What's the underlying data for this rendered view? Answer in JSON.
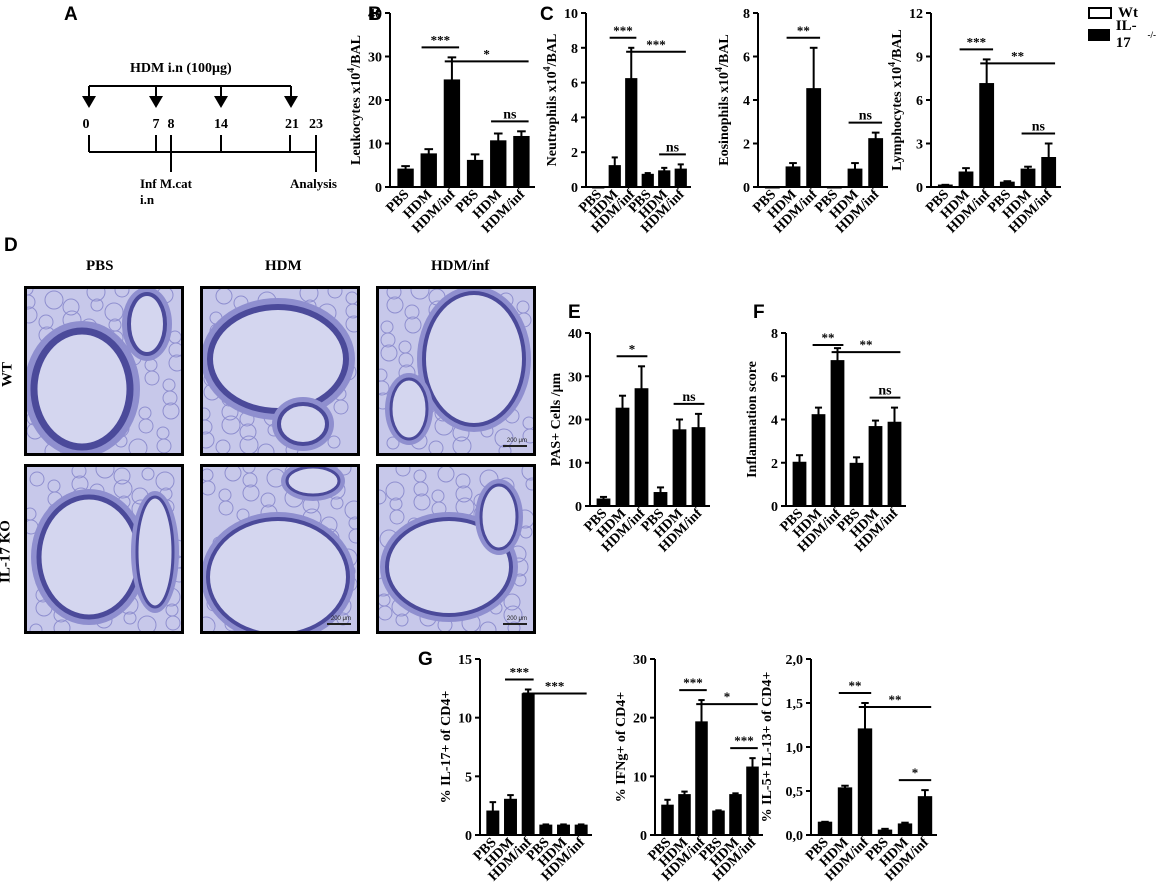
{
  "panel_letters": [
    "A",
    "B",
    "C",
    "D",
    "E",
    "F",
    "G"
  ],
  "legend": [
    {
      "label": "Wt",
      "style": "open"
    },
    {
      "label": "IL-17",
      "sup": "-/-",
      "style": "filled"
    }
  ],
  "timeline": {
    "title": "HDM i.n (100μg)",
    "days": [
      "0",
      "7",
      "8",
      "14",
      "21",
      "23"
    ],
    "infection_label_1": "Inf M.cat",
    "infection_label_2": "i.n",
    "analysis_label": "Analysis"
  },
  "micrographs": {
    "col_labels": [
      "PBS",
      "HDM",
      "HDM/inf"
    ],
    "row_labels": [
      "WT",
      "IL-17 KO"
    ],
    "scale_text": "200 μm",
    "stain_colors": {
      "background": "#c7c8ea",
      "tissue": "#8f8fcf",
      "epithelium": "#4b4a9a",
      "lumen": "#d4d6ef"
    }
  },
  "colors": {
    "open_fill": "#ffffff",
    "filled": "#000000",
    "stroke": "#000000"
  },
  "chart_data": [
    {
      "id": "B",
      "type": "bar",
      "ylabel": "Leukocytes x10",
      "ylabel_sup": "4",
      "ylabel_tail": "/BAL",
      "categories": [
        "PBS",
        "HDM",
        "HDM/inf",
        "PBS",
        "HDM",
        "HDM/inf"
      ],
      "fills": [
        "open",
        "open",
        "open",
        "filled",
        "filled",
        "filled"
      ],
      "values": [
        4,
        7.5,
        24.5,
        6,
        10.5,
        11.5
      ],
      "errors": [
        0.8,
        1.2,
        5.3,
        1.5,
        1.8,
        1.3
      ],
      "ylim": [
        0,
        40
      ],
      "yticks": [
        "0",
        "10",
        "20",
        "30",
        "40"
      ],
      "sig": [
        {
          "from": 1,
          "to": 2,
          "label": "***"
        },
        {
          "from": 2,
          "to": 5,
          "label": "*"
        },
        {
          "from": 4,
          "to": 5,
          "label": "ns"
        }
      ]
    },
    {
      "id": "C1",
      "type": "bar",
      "ylabel": "Neutrophils x10",
      "ylabel_sup": "4",
      "ylabel_tail": "/BAL",
      "categories": [
        "PBS",
        "HDM",
        "HDM/inf",
        "PBS",
        "HDM",
        "HDM/inf"
      ],
      "fills": [
        "open",
        "open",
        "open",
        "filled",
        "filled",
        "filled"
      ],
      "values": [
        0,
        1.2,
        6.2,
        0.7,
        0.9,
        1.0
      ],
      "errors": [
        0,
        0.5,
        1.8,
        0.1,
        0.2,
        0.3
      ],
      "ylim": [
        0,
        10
      ],
      "yticks": [
        "0",
        "2",
        "4",
        "6",
        "8",
        "10"
      ],
      "sig": [
        {
          "from": 1,
          "to": 2,
          "label": "***"
        },
        {
          "from": 2,
          "to": 5,
          "label": "***"
        },
        {
          "from": 4,
          "to": 5,
          "label": "ns"
        }
      ]
    },
    {
      "id": "C2",
      "type": "bar",
      "ylabel": "Eosinophils x10",
      "ylabel_sup": "4",
      "ylabel_tail": "/BAL",
      "categories": [
        "PBS",
        "HDM",
        "HDM/inf",
        "PBS",
        "HDM",
        "HDM/inf"
      ],
      "fills": [
        "open",
        "open",
        "open",
        "filled",
        "filled",
        "filled"
      ],
      "values": [
        0,
        0.9,
        4.5,
        0,
        0.8,
        2.2
      ],
      "errors": [
        0,
        0.2,
        1.9,
        0,
        0.3,
        0.3
      ],
      "ylim": [
        0,
        8
      ],
      "yticks": [
        "0",
        "2",
        "4",
        "6",
        "8"
      ],
      "sig": [
        {
          "from": 1,
          "to": 2,
          "label": "**"
        },
        {
          "from": 4,
          "to": 5,
          "label": "ns"
        }
      ]
    },
    {
      "id": "C3",
      "type": "bar",
      "ylabel": "Lymphocytes x10",
      "ylabel_sup": "4",
      "ylabel_tail": "/BAL",
      "categories": [
        "PBS",
        "HDM",
        "HDM/inf",
        "PBS",
        "HDM",
        "HDM/inf"
      ],
      "fills": [
        "open",
        "open",
        "open",
        "filled",
        "filled",
        "filled"
      ],
      "values": [
        0.1,
        1.0,
        7.1,
        0.3,
        1.2,
        2.0
      ],
      "errors": [
        0.05,
        0.3,
        1.7,
        0.1,
        0.2,
        1.0
      ],
      "ylim": [
        0,
        12
      ],
      "yticks": [
        "0",
        "3",
        "6",
        "9",
        "12"
      ],
      "sig": [
        {
          "from": 1,
          "to": 2,
          "label": "***"
        },
        {
          "from": 2,
          "to": 5,
          "label": "**"
        },
        {
          "from": 4,
          "to": 5,
          "label": "ns"
        }
      ]
    },
    {
      "id": "E",
      "type": "bar",
      "ylabel": "PAS+ Cells /μm",
      "categories": [
        "PBS",
        "HDM",
        "HDM/inf",
        "PBS",
        "HDM",
        "HDM/inf"
      ],
      "fills": [
        "open",
        "open",
        "open",
        "filled",
        "filled",
        "filled"
      ],
      "values": [
        1.5,
        22.5,
        27,
        3,
        17.5,
        18
      ],
      "errors": [
        0.6,
        3,
        5.3,
        1.3,
        2.5,
        3.3
      ],
      "ylim": [
        0,
        40
      ],
      "yticks": [
        "0",
        "10",
        "20",
        "30",
        "40"
      ],
      "sig": [
        {
          "from": 1,
          "to": 2,
          "label": "*"
        },
        {
          "from": 4,
          "to": 5,
          "label": "ns"
        }
      ]
    },
    {
      "id": "F",
      "type": "bar",
      "ylabel": "Inflammation score",
      "categories": [
        "PBS",
        "HDM",
        "HDM/inf",
        "PBS",
        "HDM",
        "HDM/inf"
      ],
      "fills": [
        "open",
        "open",
        "open",
        "filled",
        "filled",
        "filled"
      ],
      "values": [
        2,
        4.2,
        6.7,
        1.95,
        3.65,
        3.85
      ],
      "errors": [
        0.35,
        0.35,
        0.6,
        0.3,
        0.3,
        0.7
      ],
      "ylim": [
        0,
        8
      ],
      "yticks": [
        "0",
        "2",
        "4",
        "6",
        "8"
      ],
      "sig": [
        {
          "from": 1,
          "to": 2,
          "label": "**"
        },
        {
          "from": 2,
          "to": 5,
          "label": "**"
        },
        {
          "from": 4,
          "to": 5,
          "label": "ns"
        }
      ]
    },
    {
      "id": "G1",
      "type": "bar",
      "ylabel": "% IL-17+ of CD4+",
      "categories": [
        "PBS",
        "HDM",
        "HDM/inf",
        "PBS",
        "HDM",
        "HDM/inf"
      ],
      "fills": [
        "open",
        "open",
        "open",
        "filled",
        "filled",
        "filled"
      ],
      "values": [
        2,
        3,
        12,
        0.8,
        0.8,
        0.8
      ],
      "errors": [
        0.8,
        0.4,
        0.4,
        0.1,
        0.1,
        0.1
      ],
      "ylim": [
        0,
        15
      ],
      "yticks": [
        "0",
        "5",
        "10",
        "15"
      ],
      "sig": [
        {
          "from": 1,
          "to": 2,
          "label": "***"
        },
        {
          "from": 2,
          "to": 5,
          "label": "***"
        }
      ]
    },
    {
      "id": "G2",
      "type": "bar",
      "ylabel": "% IFNg+ of CD4+",
      "categories": [
        "PBS",
        "HDM",
        "HDM/inf",
        "PBS",
        "HDM",
        "HDM/inf"
      ],
      "fills": [
        "open",
        "open",
        "open",
        "filled",
        "filled",
        "filled"
      ],
      "values": [
        5,
        6.8,
        19.2,
        4,
        6.8,
        11.5
      ],
      "errors": [
        1,
        0.6,
        3.8,
        0.2,
        0.3,
        1.6
      ],
      "ylim": [
        0,
        30
      ],
      "yticks": [
        "0",
        "10",
        "20",
        "30"
      ],
      "sig": [
        {
          "from": 1,
          "to": 2,
          "label": "***"
        },
        {
          "from": 2,
          "to": 5,
          "label": "*"
        },
        {
          "from": 4,
          "to": 5,
          "label": "***"
        }
      ]
    },
    {
      "id": "G3",
      "type": "bar",
      "ylabel": "% IL-5+ IL-13+ of CD4+",
      "categories": [
        "PBS",
        "HDM",
        "HDM/inf",
        "PBS",
        "HDM",
        "HDM/inf"
      ],
      "fills": [
        "open",
        "open",
        "open",
        "filled",
        "filled",
        "filled"
      ],
      "values": [
        0.14,
        0.53,
        1.2,
        0.05,
        0.12,
        0.43
      ],
      "errors": [
        0.01,
        0.03,
        0.3,
        0.02,
        0.02,
        0.08
      ],
      "ylim": [
        0,
        2
      ],
      "yticks": [
        "0,0",
        "0,5",
        "1,0",
        "1,5",
        "2,0"
      ],
      "sig": [
        {
          "from": 1,
          "to": 2,
          "label": "**"
        },
        {
          "from": 2,
          "to": 5,
          "label": "**"
        },
        {
          "from": 4,
          "to": 5,
          "label": "*"
        }
      ]
    }
  ]
}
